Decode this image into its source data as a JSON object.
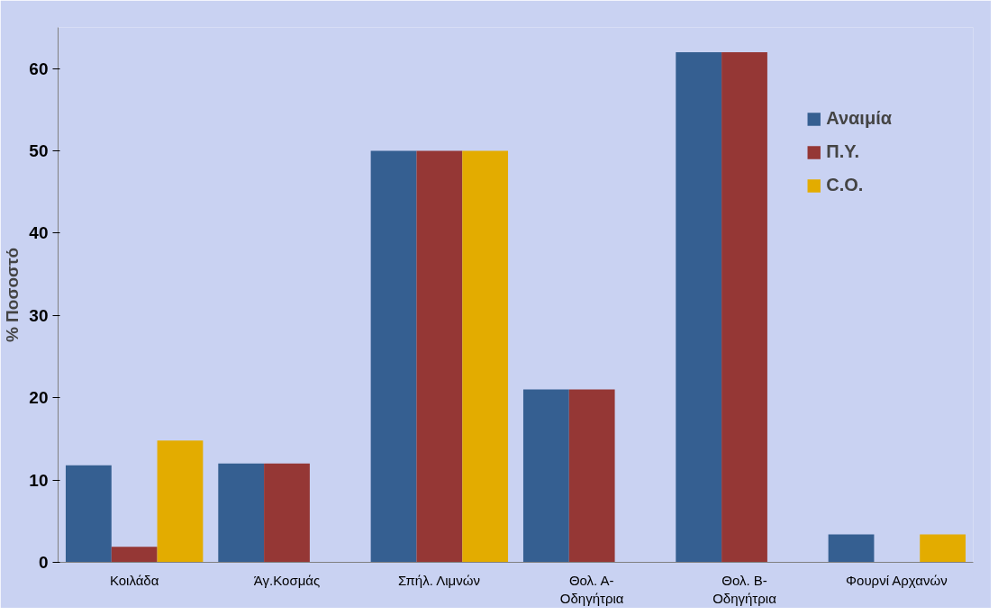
{
  "chart_data": {
    "type": "bar",
    "ylabel": "% Ποσοστό",
    "categories": [
      "Κοιλάδα",
      "Άγ.Κοσμάς",
      "Σπήλ. Λιμνών",
      "Θολ. Α-\nΟδηγήτρια",
      "Θολ. Β-\nΟδηγήτρια",
      "Φουρνί Αρχανών"
    ],
    "series": [
      {
        "name": "Αναιμία",
        "color": "#355f91",
        "values": [
          11.8,
          12,
          50,
          21,
          62,
          3.4
        ]
      },
      {
        "name": "Π.Υ.",
        "color": "#953735",
        "values": [
          1.9,
          12,
          50,
          21,
          62,
          null
        ]
      },
      {
        "name": "C.O.",
        "color": "#e3ac00",
        "values": [
          14.8,
          null,
          50,
          null,
          null,
          3.4
        ]
      }
    ],
    "ylim": [
      0,
      65
    ],
    "yticks": [
      0,
      10,
      20,
      30,
      40,
      50,
      60
    ],
    "grid": false,
    "legend": "top right"
  }
}
